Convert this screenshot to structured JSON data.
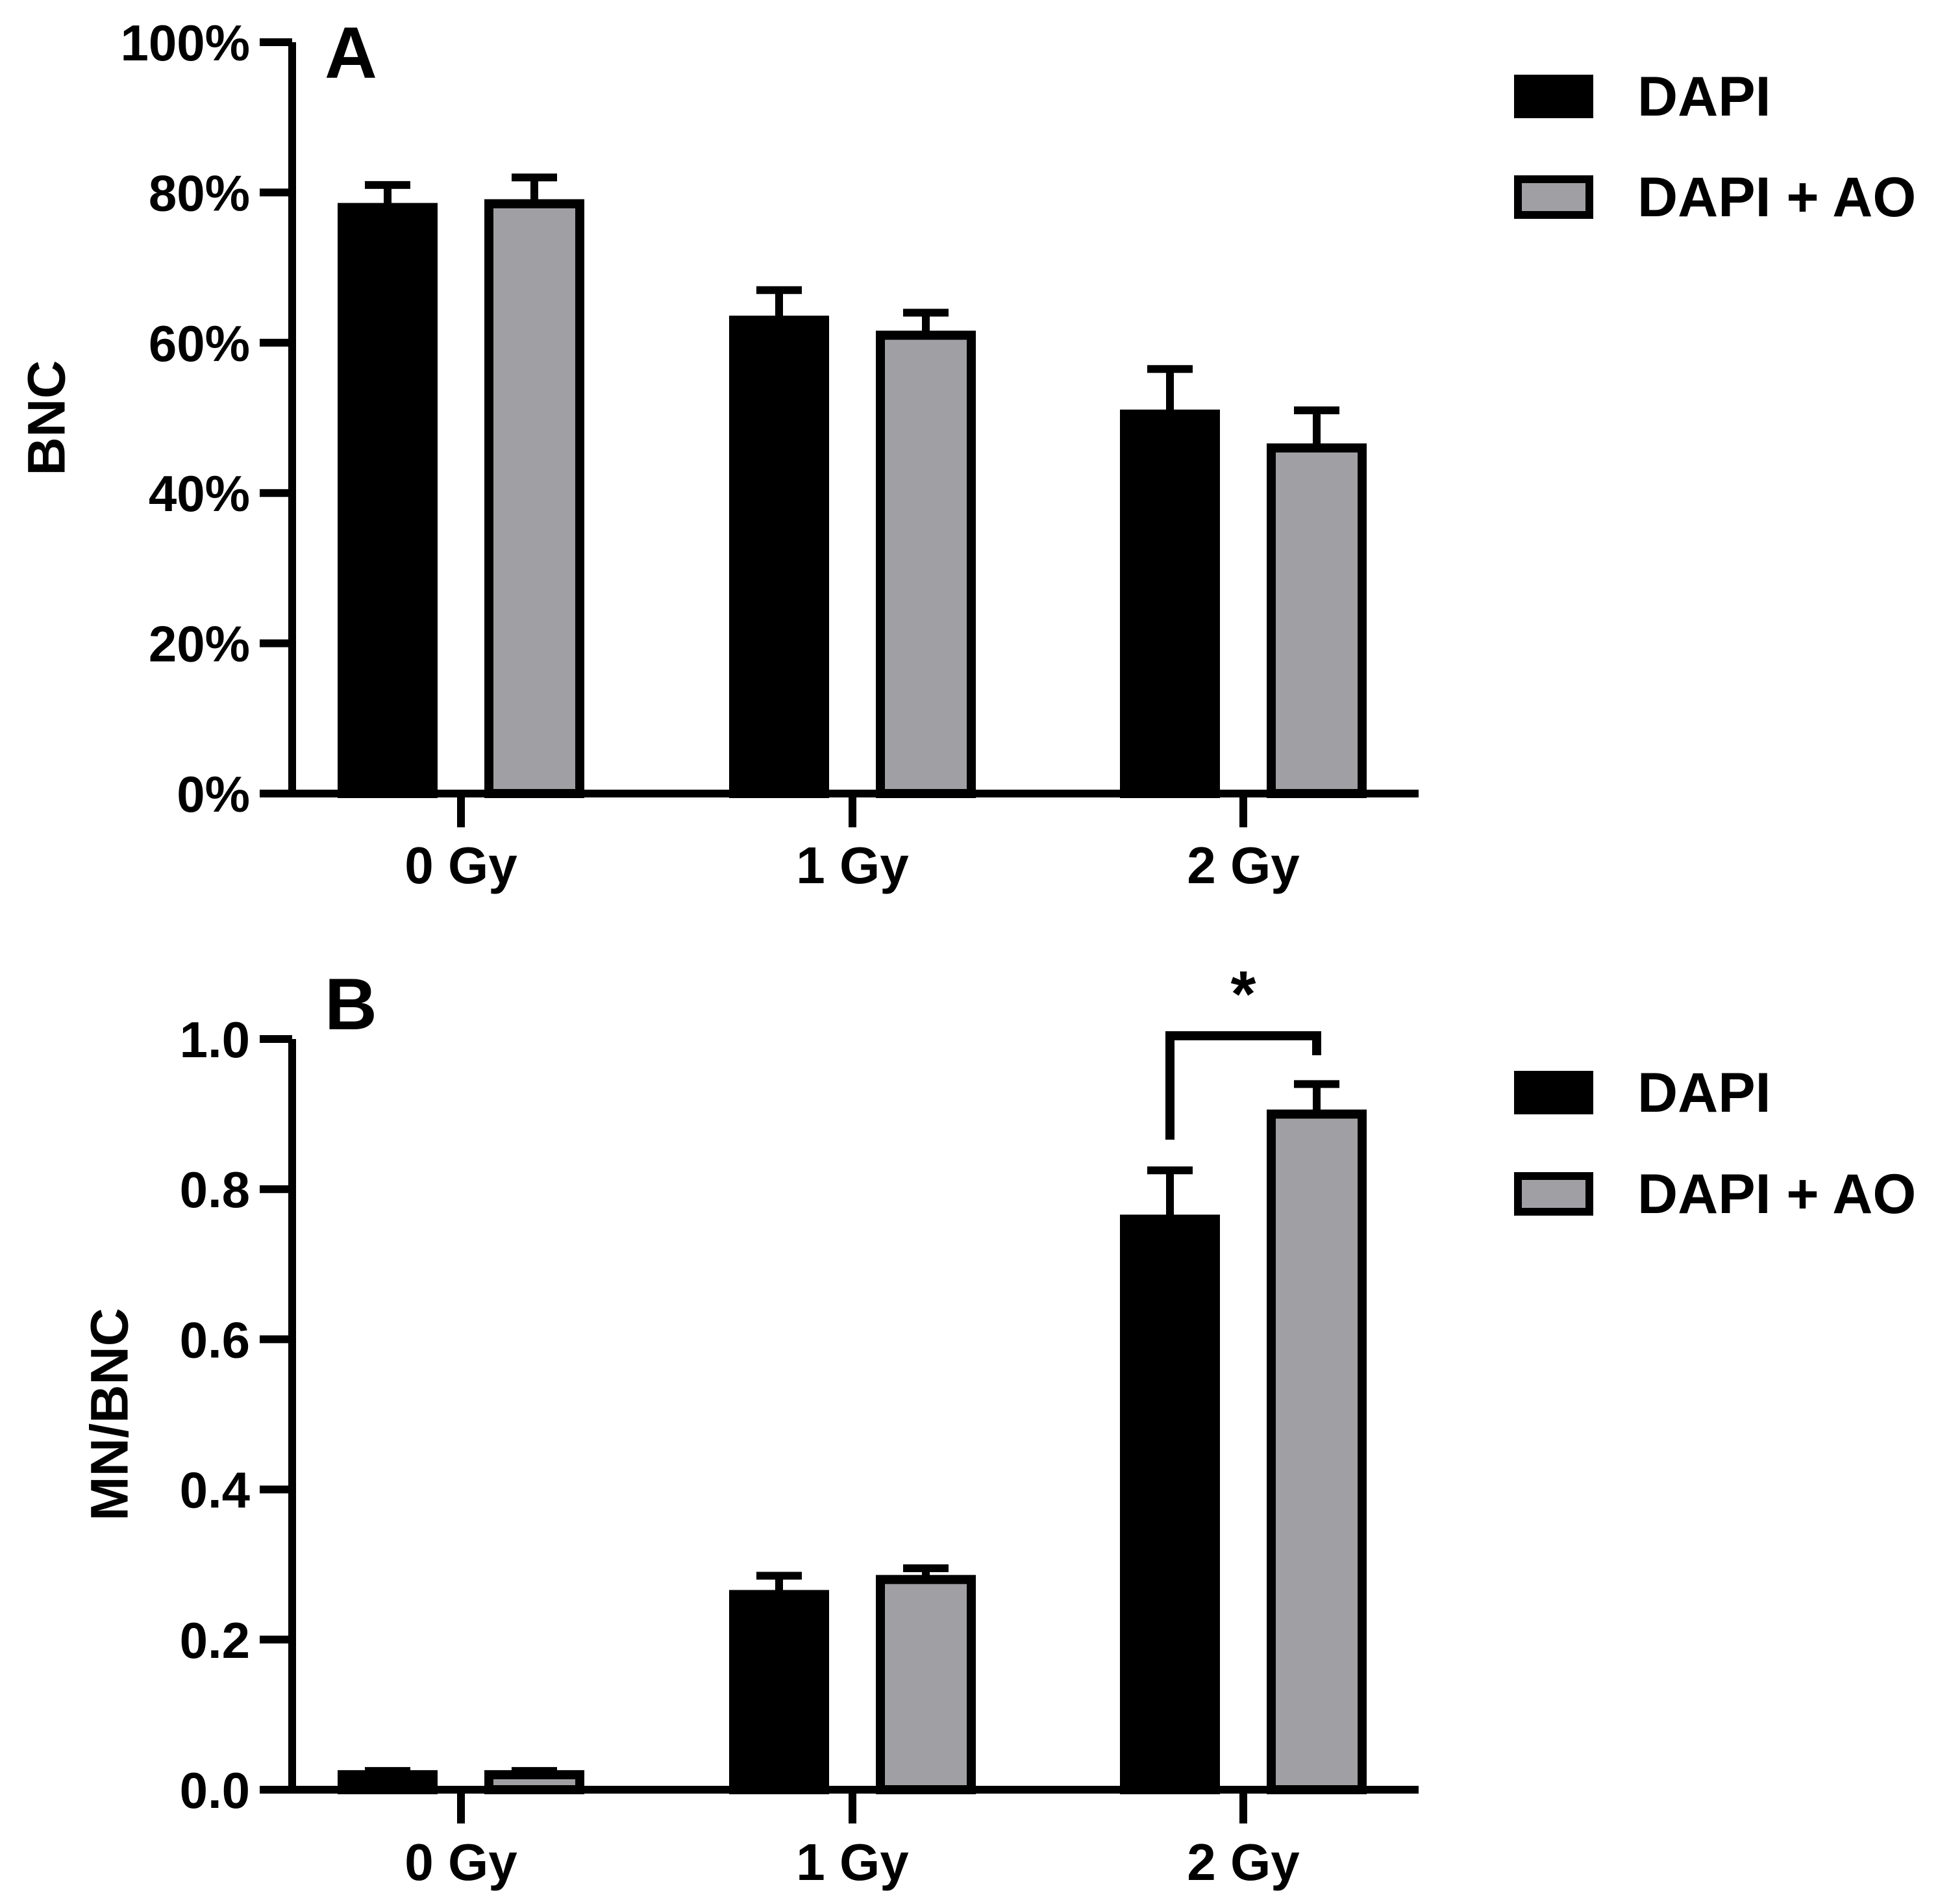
{
  "chart_data": [
    {
      "type": "bar",
      "panel_label": "A",
      "categories": [
        "0 Gy",
        "1 Gy",
        "2 Gy"
      ],
      "series": [
        {
          "name": "DAPI",
          "values": [
            0.78,
            0.63,
            0.505
          ],
          "errors": [
            0.03,
            0.04,
            0.06
          ]
        },
        {
          "name": "DAPI + AO",
          "values": [
            0.785,
            0.61,
            0.46
          ],
          "errors": [
            0.035,
            0.03,
            0.05
          ]
        }
      ],
      "ylabel": "BNC",
      "ylim": [
        0,
        1.0
      ],
      "yticks": [
        0,
        0.2,
        0.4,
        0.6,
        0.8,
        1.0
      ],
      "ytick_labels": [
        "0%",
        "20%",
        "40%",
        "60%",
        "80%",
        "100%"
      ],
      "legend": [
        "DAPI",
        "DAPI + AO"
      ],
      "legend_position": "top-right",
      "annotation": ""
    },
    {
      "type": "bar",
      "panel_label": "B",
      "categories": [
        "0 Gy",
        "1 Gy",
        "2 Gy"
      ],
      "series": [
        {
          "name": "DAPI",
          "values": [
            0.02,
            0.26,
            0.76
          ],
          "errors": [
            0.005,
            0.025,
            0.065
          ]
        },
        {
          "name": "DAPI + AO",
          "values": [
            0.02,
            0.28,
            0.9
          ],
          "errors": [
            0.005,
            0.015,
            0.04
          ]
        }
      ],
      "ylabel": "MN/BNC",
      "ylim": [
        0,
        1.0
      ],
      "yticks": [
        0,
        0.2,
        0.4,
        0.6,
        0.8,
        1.0
      ],
      "ytick_labels": [
        "0.0",
        "0.2",
        "0.4",
        "0.6",
        "0.8",
        "1.0"
      ],
      "legend": [
        "DAPI",
        "DAPI + AO"
      ],
      "legend_position": "top-right",
      "annotation": "*"
    }
  ],
  "colors": {
    "DAPI": "#000000",
    "DAPI + AO": "#a0a0a4",
    "axis": "#000000"
  }
}
